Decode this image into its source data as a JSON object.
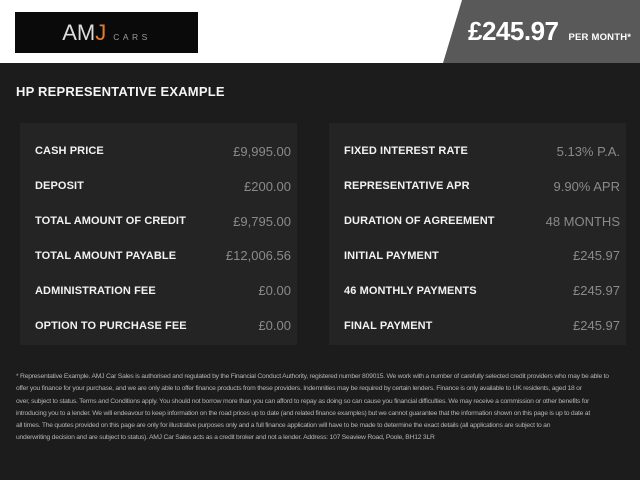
{
  "colors": {
    "page_bg": "#1c1c1c",
    "top_band": "#ffffff",
    "banner_bg": "#59595a",
    "panel_bg": "#242424",
    "value_color": "#8a8a8a",
    "accent_orange": "#e87a2e",
    "logo_bg": "#0a0a0a",
    "disclaimer_color": "#b3b3b3"
  },
  "logo": {
    "part_am": "AM",
    "part_j": "J",
    "part_cars": "CARS"
  },
  "price_banner": {
    "amount": "£245.97",
    "period": "PER MONTH*"
  },
  "section_title": "HP REPRESENTATIVE EXAMPLE",
  "finance_left": [
    {
      "label": "CASH PRICE",
      "value": "£9,995.00"
    },
    {
      "label": "DEPOSIT",
      "value": "£200.00"
    },
    {
      "label": "TOTAL AMOUNT OF CREDIT",
      "value": "£9,795.00"
    },
    {
      "label": "TOTAL AMOUNT PAYABLE",
      "value": "£12,006.56"
    },
    {
      "label": "ADMINISTRATION FEE",
      "value": "£0.00"
    },
    {
      "label": "OPTION TO PURCHASE FEE",
      "value": "£0.00"
    }
  ],
  "finance_right": [
    {
      "label": "FIXED INTEREST RATE",
      "value": "5.13% P.A."
    },
    {
      "label": "REPRESENTATIVE APR",
      "value": "9.90% APR"
    },
    {
      "label": "DURATION OF AGREEMENT",
      "value": "48 MONTHS"
    },
    {
      "label": "INITIAL PAYMENT",
      "value": "£245.97"
    },
    {
      "label": "46 MONTHLY PAYMENTS",
      "value": "£245.97"
    },
    {
      "label": "FINAL PAYMENT",
      "value": "£245.97"
    }
  ],
  "disclaimer_lines": [
    "* Representative Example. AMJ Car Sales is authorised and regulated by the Financial Conduct Authority, registered number 809015. We work with a number of carefully selected credit providers who may be able to",
    "offer you finance for your purchase, and we are only able to offer finance products from these providers. Indemnities may be required by certain lenders. Finance is only available to UK residents, aged 18 or",
    "over, subject to status. Terms and Conditions apply. You should not borrow more than you can afford to repay as doing so can cause you financial difficulties. We may receive a commission or other benefits for",
    "introducing you to a lender. We will endeavour to keep information on the road prices up to date (and related finance examples) but we cannot guarantee that the information shown on this page is up to date at",
    "all times. The quotes provided on this page are only for illustrative purposes only and a full finance application will have to be made to determine the exact details (all applications are subject to an",
    "underwriting decision and are subject to status). AMJ Car Sales acts as a credit broker and not a lender. Address: 107 Seaview Road, Poole, BH12 3LR"
  ]
}
